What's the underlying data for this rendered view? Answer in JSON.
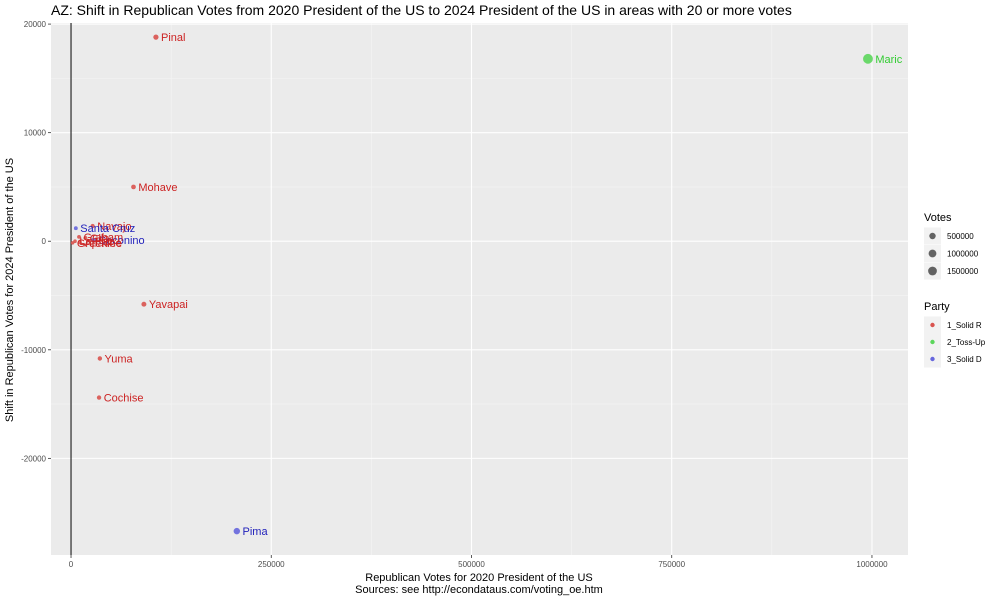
{
  "chart_data": {
    "type": "scatter",
    "title": "AZ: Shift in Republican Votes from 2020 President of the US to 2024 President of the US in areas with 20 or more votes",
    "xlabel": "Republican Votes for 2020 President of the US",
    "caption": "Sources: see http://econdataus.com/voting_oe.htm",
    "ylabel": "Shift in Republican Votes for 2024 President of the US",
    "xlim": [
      -25000,
      1045000
    ],
    "ylim": [
      -28900,
      20100
    ],
    "x_ticks": [
      0,
      250000,
      500000,
      750000,
      1000000
    ],
    "x_tick_labels": [
      "0",
      "250000",
      "500000",
      "750000",
      "1000000"
    ],
    "y_ticks": [
      -20000,
      -10000,
      0,
      10000,
      20000
    ],
    "y_tick_labels": [
      "-20000",
      "-10000",
      "0",
      "10000",
      "20000"
    ],
    "vline_x": 0,
    "grid": true,
    "legend_size": {
      "title": "Votes",
      "entries": [
        {
          "label": "500000",
          "value": 500000
        },
        {
          "label": "1000000",
          "value": 1000000
        },
        {
          "label": "1500000",
          "value": 1500000
        }
      ]
    },
    "legend_color": {
      "title": "Party",
      "entries": [
        {
          "label": "1_Solid R",
          "color": "#d9534f"
        },
        {
          "label": "2_Toss-Up",
          "color": "#5cd65c"
        },
        {
          "label": "3_Solid D",
          "color": "#6666dd"
        }
      ]
    },
    "label_colors": {
      "1_Solid R": "#cc2222",
      "2_Toss-Up": "#33cc33",
      "3_Solid D": "#2222bb"
    },
    "points": [
      {
        "label": "Pinal",
        "x": 106000,
        "y": 18800,
        "votes": 200000,
        "party": "1_Solid R"
      },
      {
        "label": "Maricopa",
        "x": 995000,
        "y": 16800,
        "votes": 2100000,
        "party": "2_Toss-Up"
      },
      {
        "label": "Mohave",
        "x": 78000,
        "y": 5000,
        "votes": 110000,
        "party": "1_Solid R"
      },
      {
        "label": "Navajo",
        "x": 27000,
        "y": 1400,
        "votes": 50000,
        "party": "1_Solid R"
      },
      {
        "label": "Santa Cruz",
        "x": 6000,
        "y": 1200,
        "votes": 20000,
        "party": "3_Solid D"
      },
      {
        "label": "Coconino",
        "x": 28000,
        "y": 100,
        "votes": 70000,
        "party": "3_Solid D"
      },
      {
        "label": "Graham",
        "x": 10000,
        "y": 400,
        "votes": 20000,
        "party": "1_Solid R"
      },
      {
        "label": "Gila",
        "x": 18000,
        "y": 300,
        "votes": 30000,
        "party": "1_Solid R"
      },
      {
        "label": "Apache",
        "x": 11000,
        "y": -100,
        "votes": 30000,
        "party": "1_Solid R"
      },
      {
        "label": "La Paz",
        "x": 5000,
        "y": 0,
        "votes": 8000,
        "party": "1_Solid R"
      },
      {
        "label": "Greenlee",
        "x": 2000,
        "y": -150,
        "votes": 4000,
        "party": "1_Solid R"
      },
      {
        "label": "Yavapai",
        "x": 91000,
        "y": -5800,
        "votes": 150000,
        "party": "1_Solid R"
      },
      {
        "label": "Yuma",
        "x": 36000,
        "y": -10800,
        "votes": 70000,
        "party": "1_Solid R"
      },
      {
        "label": "Cochise",
        "x": 35000,
        "y": -14400,
        "votes": 60000,
        "party": "1_Solid R"
      },
      {
        "label": "Pima",
        "x": 207000,
        "y": -26700,
        "votes": 500000,
        "party": "3_Solid D"
      }
    ]
  }
}
